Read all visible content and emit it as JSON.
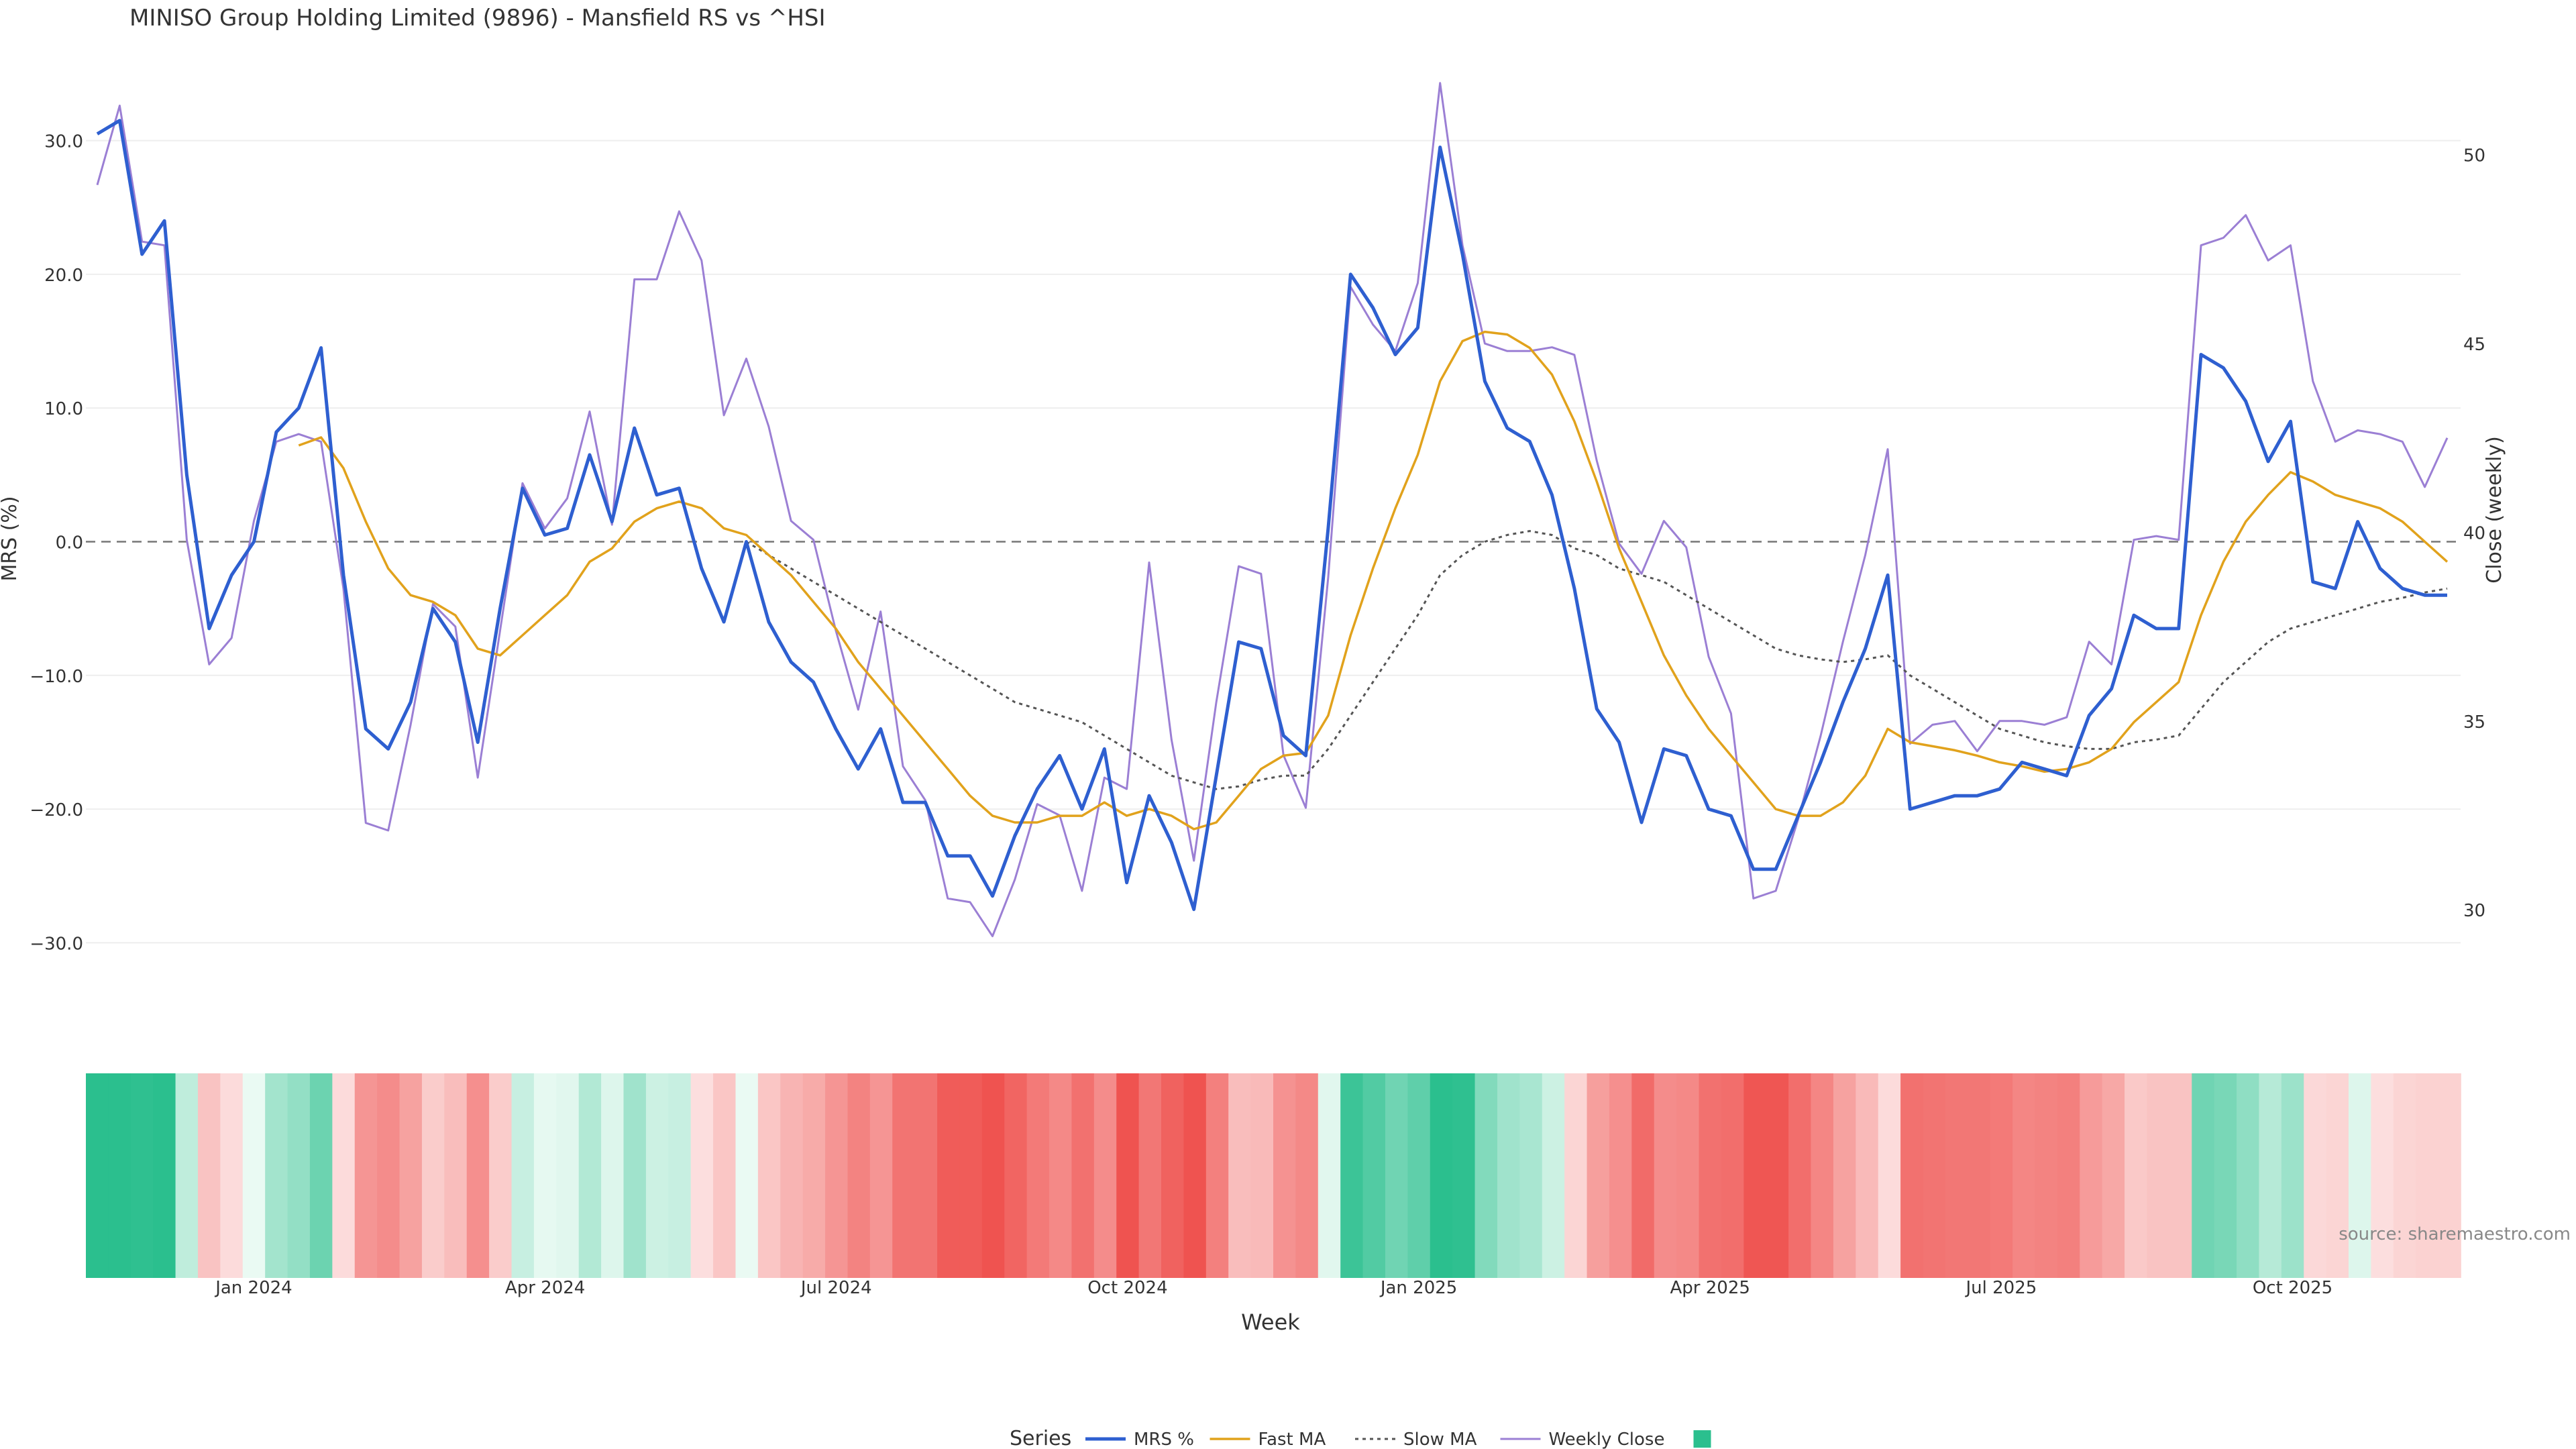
{
  "chart_data": {
    "type": "line",
    "title": "MINISO Group Holding Limited (9896) - Mansfield RS vs ^HSI",
    "xlabel": "Week",
    "ylabel_left": "MRS (%)",
    "ylabel_right": "Close (weekly)",
    "ylim_left": [
      -36,
      36
    ],
    "ylim_right": [
      27,
      52.5
    ],
    "y_ticks_left": [
      "30.0",
      "20.0",
      "10.0",
      "0.0",
      "−10.0",
      "−20.0",
      "−30.0"
    ],
    "y_tick_values_left": [
      30,
      20,
      10,
      0,
      -10,
      -20,
      -30
    ],
    "y_ticks_right": [
      "50",
      "45",
      "40",
      "35",
      "30"
    ],
    "y_tick_values_right": [
      50,
      45,
      40,
      35,
      30
    ],
    "x_ticks": [
      "Jan 2024",
      "Apr 2024",
      "Jul 2024",
      "Oct 2024",
      "Jan 2025",
      "Apr 2025",
      "Jul 2025",
      "Oct 2025"
    ],
    "x_tick_weeks": [
      7.5,
      20.5,
      33.5,
      46.5,
      59.5,
      72.5,
      85.5,
      98.5
    ],
    "zero_line": 0,
    "grid": true,
    "legend_title": "Series",
    "legend_position": "bottom-center",
    "source_note": "source: sharemaestro.com",
    "colors": {
      "mrs": "#2e5fd0",
      "fast_ma": "#e1a21c",
      "slow_ma": "#555555",
      "weekly_close": "#9b7fd4",
      "heat_positive": "#2bbf8e",
      "heat_negative": "#ef5350"
    },
    "series": [
      {
        "name": "MRS %",
        "axis": "left",
        "style": "solid",
        "values": [
          30.5,
          31.5,
          21.5,
          24,
          5,
          -6.5,
          -2.5,
          0,
          8.2,
          10,
          14.5,
          -2.5,
          -14,
          -15.5,
          -12,
          -5,
          -7.5,
          -15,
          -5,
          4,
          0.5,
          1,
          6.5,
          1.5,
          8.5,
          3.5,
          4,
          -2,
          -6,
          0,
          -6,
          -9,
          -10.5,
          -14,
          -17,
          -14,
          -19.5,
          -19.5,
          -23.5,
          -23.5,
          -26.5,
          -22,
          -18.5,
          -16,
          -20,
          -15.5,
          -25.5,
          -19,
          -22.5,
          -27.5,
          -17.5,
          -7.5,
          -8,
          -14.5,
          -16,
          1,
          20,
          17.5,
          14,
          16,
          29.5,
          21.5,
          12,
          8.5,
          7.5,
          3.5,
          -3.5,
          -12.5,
          -15,
          -21,
          -15.5,
          -16,
          -20,
          -20.5,
          -24.5,
          -24.5,
          -20.5,
          -16.5,
          -12,
          -8,
          -2.5,
          -20,
          -19.5,
          -19,
          -19,
          -18.5,
          -16.5,
          -17,
          -17.5,
          -13,
          -11,
          -5.5,
          -6.5,
          -6.5,
          14,
          13,
          10.5,
          6,
          9,
          -3,
          -3.5,
          1.5,
          -2,
          -3.5,
          -4,
          -4
        ]
      },
      {
        "name": "Fast MA",
        "axis": "left",
        "style": "solid",
        "values": [
          null,
          null,
          null,
          null,
          null,
          null,
          null,
          null,
          null,
          7.2,
          7.8,
          5.5,
          1.5,
          -2,
          -4,
          -4.5,
          -5.5,
          -8,
          -8.5,
          -7,
          -5.5,
          -4,
          -1.5,
          -0.5,
          1.5,
          2.5,
          3,
          2.5,
          1,
          0.5,
          -1,
          -2.5,
          -4.5,
          -6.5,
          -9,
          -11,
          -13,
          -15,
          -17,
          -19,
          -20.5,
          -21,
          -21,
          -20.5,
          -20.5,
          -19.5,
          -20.5,
          -20,
          -20.5,
          -21.5,
          -21,
          -19,
          -17,
          -16,
          -15.8,
          -13,
          -7,
          -2,
          2.5,
          6.5,
          12,
          15,
          15.7,
          15.5,
          14.5,
          12.5,
          9,
          4.5,
          -0.5,
          -4.5,
          -8.5,
          -11.5,
          -14,
          -16,
          -18,
          -20,
          -20.5,
          -20.5,
          -19.5,
          -17.5,
          -14,
          -15,
          -15.3,
          -15.6,
          -16,
          -16.5,
          -16.8,
          -17.2,
          -17,
          -16.5,
          -15.5,
          -13.5,
          -12,
          -10.5,
          -5.5,
          -1.5,
          1.5,
          3.5,
          5.2,
          4.5,
          3.5,
          3,
          2.5,
          1.5,
          0,
          -1.5
        ]
      },
      {
        "name": "Slow MA",
        "axis": "left",
        "style": "dotted",
        "values": [
          null,
          null,
          null,
          null,
          null,
          null,
          null,
          null,
          null,
          null,
          null,
          null,
          null,
          null,
          null,
          null,
          null,
          null,
          null,
          null,
          null,
          null,
          null,
          null,
          null,
          null,
          null,
          null,
          null,
          0,
          -1,
          -2,
          -3,
          -4,
          -5,
          -6,
          -7,
          -8,
          -9,
          -10,
          -11,
          -12,
          -12.5,
          -13,
          -13.5,
          -14.5,
          -15.5,
          -16.5,
          -17.5,
          -18,
          -18.5,
          -18.3,
          -17.8,
          -17.5,
          -17.5,
          -15.5,
          -13,
          -10.5,
          -8,
          -5.5,
          -2.5,
          -1,
          0,
          0.5,
          0.8,
          0.5,
          -0.5,
          -1,
          -2,
          -2.5,
          -3,
          -4,
          -5,
          -6,
          -7,
          -8,
          -8.5,
          -8.8,
          -9,
          -8.8,
          -8.5,
          -10,
          -11,
          -12,
          -13,
          -14,
          -14.5,
          -15,
          -15.3,
          -15.5,
          -15.5,
          -15,
          -14.8,
          -14.5,
          -12.5,
          -10.5,
          -9,
          -7.5,
          -6.5,
          -6,
          -5.5,
          -5,
          -4.5,
          -4.2,
          -3.8,
          -3.5
        ]
      },
      {
        "name": "Weekly Close",
        "axis": "right",
        "style": "thin",
        "values": [
          49.2,
          51.3,
          47.7,
          47.6,
          39.8,
          36.5,
          37.2,
          40.3,
          42.4,
          42.6,
          42.4,
          38.5,
          32.3,
          32.1,
          34.9,
          38.1,
          37.5,
          33.5,
          37.4,
          41.3,
          40.1,
          40.9,
          43.2,
          40.2,
          46.7,
          46.7,
          48.5,
          47.2,
          43.1,
          44.6,
          42.8,
          40.3,
          39.8,
          37.4,
          35.3,
          37.9,
          33.8,
          32.9,
          30.3,
          30.2,
          29.3,
          30.8,
          32.8,
          32.5,
          30.5,
          33.5,
          33.2,
          39.2,
          34.5,
          31.3,
          35.5,
          39.1,
          38.9,
          34.1,
          32.7,
          38.8,
          46.5,
          45.5,
          44.8,
          46.6,
          51.9,
          47.6,
          45,
          44.8,
          44.8,
          44.9,
          44.7,
          41.9,
          39.7,
          38.9,
          40.3,
          39.6,
          36.7,
          35.2,
          30.3,
          30.5,
          32.4,
          34.6,
          37.1,
          39.4,
          42.2,
          34.4,
          34.9,
          35,
          34.2,
          35,
          35,
          34.9,
          35.1,
          37.1,
          36.5,
          39.8,
          39.9,
          39.8,
          47.6,
          47.8,
          48.4,
          47.2,
          47.6,
          44,
          42.4,
          42.7,
          42.6,
          42.4,
          41.2,
          42.5
        ]
      }
    ],
    "heatmap_strip": {
      "description": "weekly MRS colour band",
      "values": [
        30.5,
        31.5,
        21.5,
        24,
        5,
        -6.5,
        -2.5,
        0,
        8.2,
        10,
        14.5,
        -2.5,
        -14,
        -15.5,
        -12,
        -5,
        -7.5,
        -15,
        -5,
        4,
        0.5,
        1,
        6.5,
        1.5,
        8.5,
        3.5,
        4,
        -2,
        -6,
        0,
        -6,
        -9,
        -10.5,
        -14,
        -17,
        -14,
        -19.5,
        -19.5,
        -23.5,
        -23.5,
        -26.5,
        -22,
        -18.5,
        -16,
        -20,
        -15.5,
        -25.5,
        -19,
        -22.5,
        -27.5,
        -17.5,
        -7.5,
        -8,
        -14.5,
        -16,
        1,
        20,
        17.5,
        14,
        16,
        29.5,
        21.5,
        12,
        8.5,
        7.5,
        3.5,
        -3.5,
        -12.5,
        -15,
        -21,
        -15.5,
        -16,
        -20,
        -20.5,
        -24.5,
        -24.5,
        -20.5,
        -16.5,
        -12,
        -8,
        -2.5,
        -20,
        -19.5,
        -19,
        -19,
        -18.5,
        -16.5,
        -17,
        -17.5,
        -13,
        -11,
        -5.5,
        -6.5,
        -6.5,
        14,
        13,
        10.5,
        6,
        9,
        -3,
        -3.5,
        1.5,
        -2,
        -3.5,
        -4,
        -4
      ]
    }
  }
}
